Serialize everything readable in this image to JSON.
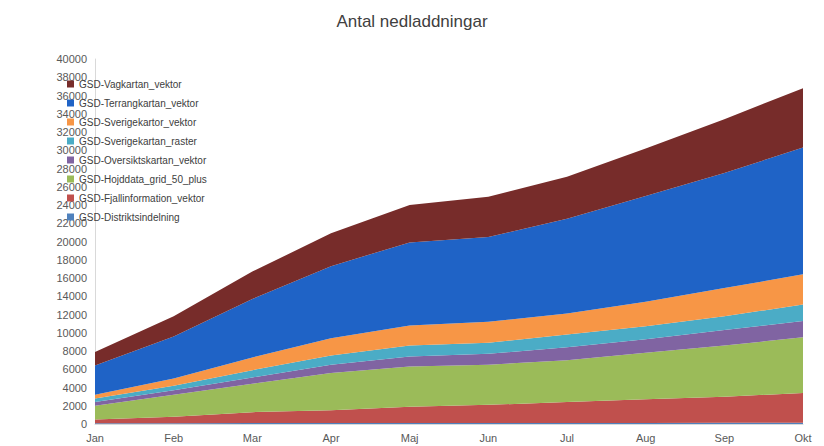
{
  "chart_data": {
    "type": "area",
    "title": "Antal nedladdningar",
    "categories": [
      "Jan",
      "Feb",
      "Mar",
      "Apr",
      "Maj",
      "Jun",
      "Jul",
      "Aug",
      "Sep",
      "Okt"
    ],
    "stacked": true,
    "grid": false,
    "legend": "upper left",
    "ylim": [
      0,
      40000
    ],
    "yticks": [
      0,
      2000,
      4000,
      6000,
      8000,
      10000,
      12000,
      14000,
      16000,
      18000,
      20000,
      22000,
      24000,
      26000,
      28000,
      30000,
      32000,
      34000,
      36000,
      38000,
      40000
    ],
    "series": [
      {
        "name": "GSD-Distriktsindelning",
        "color": "#4f81bd",
        "values": [
          80,
          90,
          100,
          100,
          110,
          110,
          120,
          120,
          130,
          130
        ]
      },
      {
        "name": "GSD-Fjallinformation_vektor",
        "color": "#c0504d",
        "values": [
          420,
          710,
          1200,
          1400,
          1790,
          1990,
          2280,
          2580,
          2870,
          3270
        ]
      },
      {
        "name": "GSD-Hojddata_grid_50_plus",
        "color": "#9bbb59",
        "values": [
          1500,
          2400,
          3100,
          4100,
          4400,
          4400,
          4600,
          5100,
          5600,
          6100
        ]
      },
      {
        "name": "GSD-Oversiktskartan_vektor",
        "color": "#8064a2",
        "values": [
          400,
          500,
          700,
          900,
          1100,
          1200,
          1400,
          1500,
          1700,
          1800
        ]
      },
      {
        "name": "GSD-Sverigekartan_raster",
        "color": "#4bacc6",
        "values": [
          400,
          500,
          800,
          1000,
          1200,
          1200,
          1400,
          1400,
          1500,
          1800
        ]
      },
      {
        "name": "GSD-Sverigekartor_vektor",
        "color": "#f79646",
        "values": [
          400,
          800,
          1400,
          1900,
          2200,
          2300,
          2300,
          2700,
          3100,
          3300
        ]
      },
      {
        "name": "GSD-Terrangkartan_vektor",
        "color": "#1f63c6",
        "values": [
          3200,
          4600,
          6400,
          7900,
          9100,
          9300,
          10400,
          11600,
          12600,
          13900
        ]
      },
      {
        "name": "GSD-Vagkartan_vektor",
        "color": "#772c2a",
        "values": [
          1500,
          2200,
          3000,
          3600,
          4100,
          4400,
          4600,
          5200,
          5900,
          6500
        ]
      }
    ]
  }
}
